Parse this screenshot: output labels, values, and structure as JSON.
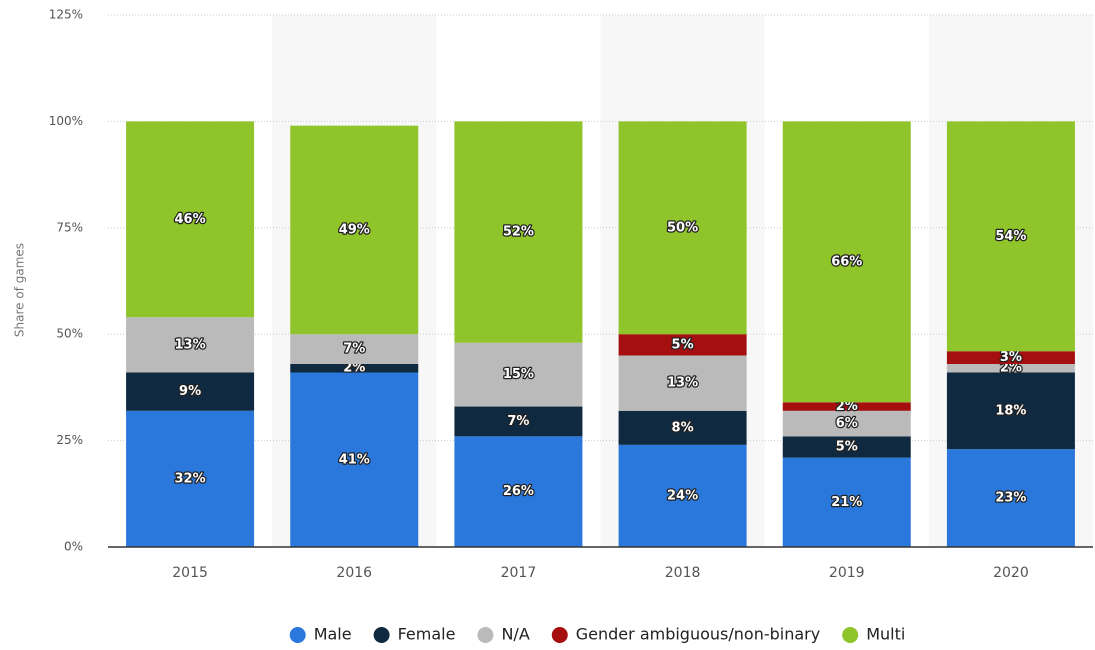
{
  "chart_data": {
    "type": "stacked_bar",
    "categories": [
      "2015",
      "2016",
      "2017",
      "2018",
      "2019",
      "2020"
    ],
    "y_label": "Share of games",
    "ylim": [
      0,
      125
    ],
    "yticks": [
      {
        "value": 0,
        "label": "0%"
      },
      {
        "value": 25,
        "label": "25%"
      },
      {
        "value": 50,
        "label": "50%"
      },
      {
        "value": 75,
        "label": "75%"
      },
      {
        "value": 100,
        "label": "100%"
      },
      {
        "value": 125,
        "label": "125%"
      }
    ],
    "grid": true,
    "legend": "bottom",
    "series": [
      {
        "name": "Male",
        "color": "#2b78dc",
        "values": [
          32,
          41,
          26,
          24,
          21,
          23
        ],
        "value_labels": [
          "32%",
          "41%",
          "26%",
          "24%",
          "21%",
          "23%"
        ]
      },
      {
        "name": "Female",
        "color": "#0f2a40",
        "values": [
          9,
          2,
          7,
          8,
          5,
          18
        ],
        "value_labels": [
          "9%",
          "2%",
          "7%",
          "8%",
          "5%",
          "18%"
        ]
      },
      {
        "name": "N/A",
        "color": "#bababa",
        "values": [
          13,
          7,
          15,
          13,
          6,
          2
        ],
        "value_labels": [
          "13%",
          "7%",
          "15%",
          "13%",
          "6%",
          "2%"
        ]
      },
      {
        "name": "Gender ambiguous/non-binary",
        "color": "#a50f0f",
        "values": [
          null,
          null,
          null,
          5,
          2,
          3
        ],
        "value_labels": [
          null,
          null,
          null,
          "5%",
          "2%",
          "3%"
        ]
      },
      {
        "name": "Multi",
        "color": "#8fc42a",
        "values": [
          46,
          49,
          52,
          50,
          66,
          54
        ],
        "value_labels": [
          "46%",
          "49%",
          "52%",
          "50%",
          "66%",
          "54%"
        ]
      }
    ]
  }
}
